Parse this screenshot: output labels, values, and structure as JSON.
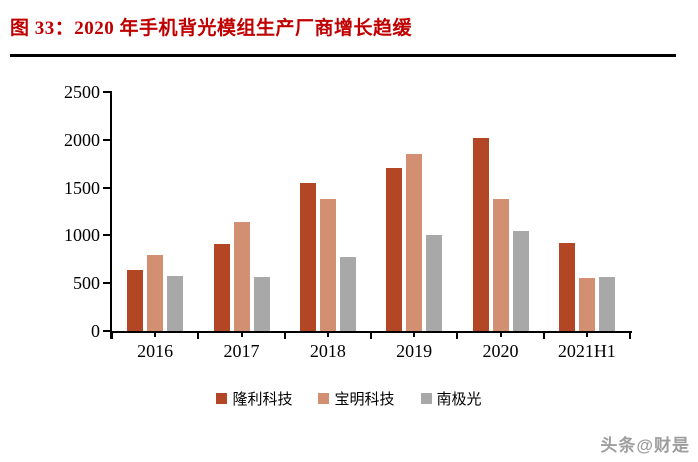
{
  "page": {
    "title": "图 33：2020 年手机背光模组生产厂商增长趋缓",
    "watermark": "头条@财是"
  },
  "colors": {
    "title_red": "#C00000",
    "axis": "#000000",
    "watermark_gray": "#9E9E9E"
  },
  "chart_data": {
    "type": "bar",
    "title": "图 33：2020 年手机背光模组生产厂商增长趋缓",
    "categories": [
      "2016",
      "2017",
      "2018",
      "2019",
      "2020",
      "2021H1"
    ],
    "series": [
      {
        "name": "隆利科技",
        "color": "#B34725",
        "values": [
          640,
          910,
          1550,
          1700,
          2020,
          920
        ]
      },
      {
        "name": "宝明科技",
        "color": "#D38F72",
        "values": [
          790,
          1140,
          1380,
          1850,
          1380,
          550
        ]
      },
      {
        "name": "南极光",
        "color": "#A8A8A8",
        "values": [
          575,
          560,
          775,
          1000,
          1050,
          560
        ]
      }
    ],
    "xlabel": "",
    "ylabel": "",
    "ylim": [
      0,
      2500
    ],
    "yticks": [
      0,
      500,
      1000,
      1500,
      2000,
      2500
    ],
    "grid": false,
    "legend_position": "bottom"
  }
}
